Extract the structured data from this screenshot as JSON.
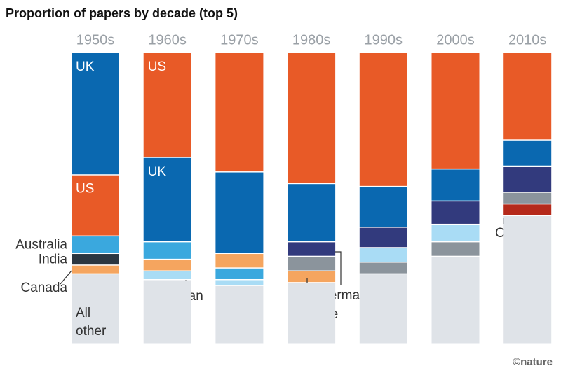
{
  "chart_data": {
    "type": "stacked-bar",
    "title": "Proportion of papers by decade (top 5)",
    "credit": "©nature",
    "categories": [
      "1950s",
      "1960s",
      "1970s",
      "1980s",
      "1990s",
      "2000s",
      "2010s"
    ],
    "stacks": [
      {
        "segments": [
          {
            "label": "UK",
            "value": 42,
            "color": "#0a68b0"
          },
          {
            "label": "US",
            "value": 21,
            "color": "#e85a27"
          },
          {
            "label": "Australia",
            "value": 6,
            "color": "#3aa8de"
          },
          {
            "label": "India",
            "value": 4,
            "color": "#2b3640"
          },
          {
            "label": "Canada",
            "value": 3,
            "color": "#f5a55f"
          },
          {
            "label": "All other",
            "value": 24,
            "color": "#dfe3e8"
          }
        ]
      },
      {
        "segments": [
          {
            "label": "US",
            "value": 36,
            "color": "#e85a27"
          },
          {
            "label": "UK",
            "value": 29,
            "color": "#0a68b0"
          },
          {
            "value": 6,
            "color": "#3aa8de"
          },
          {
            "value": 4,
            "color": "#f5a55f"
          },
          {
            "label": "Japan",
            "value": 3,
            "color": "#a9dcf5"
          },
          {
            "value": 22,
            "color": "#dfe3e8"
          }
        ]
      },
      {
        "segments": [
          {
            "value": 41,
            "color": "#e85a27"
          },
          {
            "value": 28,
            "color": "#0a68b0"
          },
          {
            "value": 5,
            "color": "#f5a55f"
          },
          {
            "value": 4,
            "color": "#3aa8de"
          },
          {
            "value": 2,
            "color": "#a9dcf5"
          },
          {
            "value": 20,
            "color": "#dfe3e8"
          }
        ]
      },
      {
        "segments": [
          {
            "value": 45,
            "color": "#e85a27"
          },
          {
            "value": 20,
            "color": "#0a68b0"
          },
          {
            "label": "Germany",
            "value": 5,
            "color": "#323a7d"
          },
          {
            "value": 5,
            "color": "#8b949c"
          },
          {
            "label": "France",
            "value": 4,
            "color": "#f5a55f"
          },
          {
            "value": 21,
            "color": "#dfe3e8"
          }
        ]
      },
      {
        "segments": [
          {
            "value": 46,
            "color": "#e85a27"
          },
          {
            "value": 14,
            "color": "#0a68b0"
          },
          {
            "value": 7,
            "color": "#323a7d"
          },
          {
            "value": 5,
            "color": "#a9dcf5"
          },
          {
            "value": 4,
            "color": "#8b949c"
          },
          {
            "value": 24,
            "color": "#dfe3e8"
          }
        ]
      },
      {
        "segments": [
          {
            "value": 40,
            "color": "#e85a27"
          },
          {
            "value": 11,
            "color": "#0a68b0"
          },
          {
            "value": 8,
            "color": "#323a7d"
          },
          {
            "value": 6,
            "color": "#a9dcf5"
          },
          {
            "value": 5,
            "color": "#8b949c"
          },
          {
            "value": 30,
            "color": "#dfe3e8"
          }
        ]
      },
      {
        "segments": [
          {
            "value": 30,
            "color": "#e85a27"
          },
          {
            "value": 9,
            "color": "#0a68b0"
          },
          {
            "value": 9,
            "color": "#323a7d"
          },
          {
            "value": 4,
            "color": "#8b949c"
          },
          {
            "label": "China",
            "value": 4,
            "color": "#b5291a"
          },
          {
            "value": 44,
            "color": "#dfe3e8"
          }
        ]
      }
    ]
  }
}
